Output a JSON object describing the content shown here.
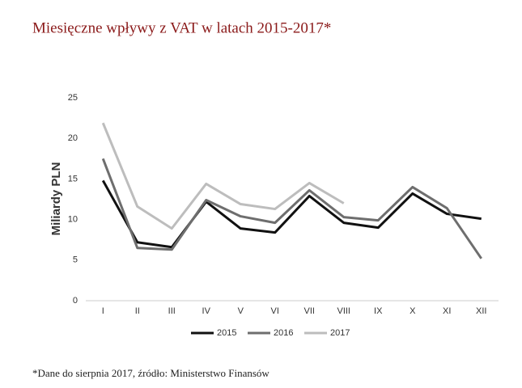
{
  "chart_data": {
    "type": "line",
    "title": "Miesięczne wpływy z VAT w latach 2015-2017*",
    "y_label": "Miliardy PLN",
    "note": "*Dane do sierpnia 2017, źródło: Ministerstwo Finansów",
    "categories": [
      "I",
      "II",
      "III",
      "IV",
      "V",
      "VI",
      "VII",
      "VIII",
      "IX",
      "X",
      "XI",
      "XII"
    ],
    "series": [
      {
        "name": "2015",
        "color": "#111111",
        "values": [
          14.8,
          7.2,
          6.6,
          12.2,
          8.9,
          8.4,
          12.9,
          9.6,
          9.0,
          13.2,
          10.7,
          10.1
        ]
      },
      {
        "name": "2016",
        "color": "#6e6e6e",
        "values": [
          17.5,
          6.5,
          6.3,
          12.4,
          10.4,
          9.6,
          13.6,
          10.3,
          9.9,
          14.0,
          11.4,
          5.2
        ]
      },
      {
        "name": "2017",
        "color": "#bdbdbd",
        "values": [
          21.9,
          11.6,
          8.9,
          14.4,
          11.9,
          11.3,
          14.5,
          12.0,
          null,
          null,
          null,
          null
        ]
      }
    ],
    "ylim": [
      0,
      25
    ],
    "yticks": [
      0,
      5,
      10,
      15,
      20,
      25
    ],
    "grid": false,
    "legend": "bottom"
  }
}
